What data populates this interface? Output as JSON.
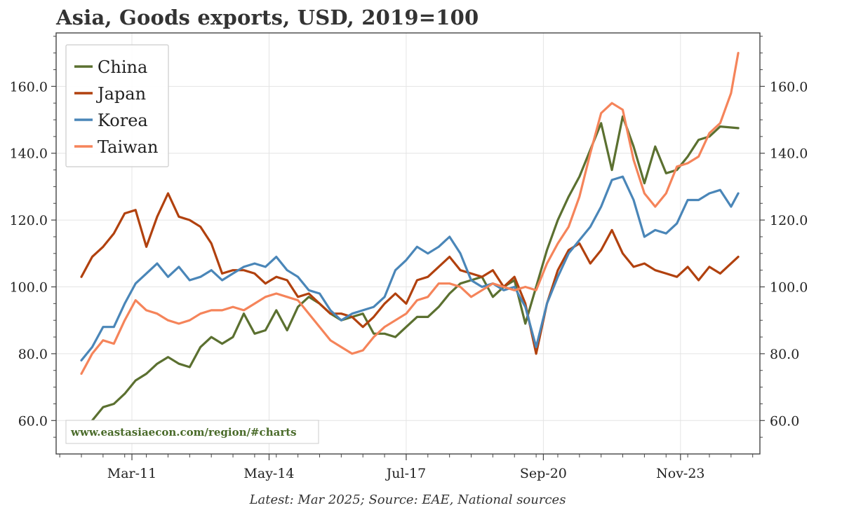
{
  "chart_data": {
    "type": "line",
    "title": "Asia, Goods exports, USD, 2019=100",
    "xlabel": "",
    "ylabel": "",
    "x_ticks": [
      "Mar-11",
      "May-14",
      "Jul-17",
      "Sep-20",
      "Nov-23"
    ],
    "x_range": [
      "2009-06",
      "2025-09"
    ],
    "y_ticks": [
      "60.0",
      "80.0",
      "100.0",
      "120.0",
      "140.0",
      "160.0"
    ],
    "y_range": [
      50,
      176
    ],
    "y_axis_both_sides": true,
    "grid": true,
    "legend_position": "top-left",
    "footnote": "Latest: Mar 2025; Source: EAE, National sources",
    "watermark": "www.eastasiaecon.com/region/#charts",
    "series": [
      {
        "name": "China",
        "color": "#5b7030",
        "points": [
          [
            "2010-01",
            55
          ],
          [
            "2010-04",
            60
          ],
          [
            "2010-07",
            64
          ],
          [
            "2010-10",
            65
          ],
          [
            "2011-01",
            68
          ],
          [
            "2011-04",
            72
          ],
          [
            "2011-07",
            74
          ],
          [
            "2011-10",
            77
          ],
          [
            "2012-01",
            79
          ],
          [
            "2012-04",
            77
          ],
          [
            "2012-07",
            76
          ],
          [
            "2012-10",
            82
          ],
          [
            "2013-01",
            85
          ],
          [
            "2013-04",
            83
          ],
          [
            "2013-07",
            85
          ],
          [
            "2013-10",
            92
          ],
          [
            "2014-01",
            86
          ],
          [
            "2014-04",
            87
          ],
          [
            "2014-07",
            93
          ],
          [
            "2014-10",
            87
          ],
          [
            "2015-01",
            94
          ],
          [
            "2015-04",
            97
          ],
          [
            "2015-07",
            95
          ],
          [
            "2015-10",
            92
          ],
          [
            "2016-01",
            90
          ],
          [
            "2016-04",
            91
          ],
          [
            "2016-07",
            92
          ],
          [
            "2016-10",
            86
          ],
          [
            "2017-01",
            86
          ],
          [
            "2017-04",
            85
          ],
          [
            "2017-07",
            88
          ],
          [
            "2017-10",
            91
          ],
          [
            "2018-01",
            91
          ],
          [
            "2018-04",
            94
          ],
          [
            "2018-07",
            98
          ],
          [
            "2018-10",
            101
          ],
          [
            "2019-01",
            102
          ],
          [
            "2019-04",
            103
          ],
          [
            "2019-07",
            97
          ],
          [
            "2019-10",
            100
          ],
          [
            "2020-01",
            102
          ],
          [
            "2020-04",
            89
          ],
          [
            "2020-07",
            100
          ],
          [
            "2020-10",
            111
          ],
          [
            "2021-01",
            120
          ],
          [
            "2021-04",
            127
          ],
          [
            "2021-07",
            133
          ],
          [
            "2021-10",
            141
          ],
          [
            "2022-01",
            149
          ],
          [
            "2022-04",
            135
          ],
          [
            "2022-07",
            151
          ],
          [
            "2022-10",
            142
          ],
          [
            "2023-01",
            131
          ],
          [
            "2023-04",
            142
          ],
          [
            "2023-07",
            134
          ],
          [
            "2023-10",
            135
          ],
          [
            "2024-01",
            139
          ],
          [
            "2024-04",
            144
          ],
          [
            "2024-07",
            145
          ],
          [
            "2024-10",
            148
          ],
          [
            "2025-03",
            147.5
          ]
        ]
      },
      {
        "name": "Japan",
        "color": "#b1410e",
        "points": [
          [
            "2010-01",
            103
          ],
          [
            "2010-04",
            109
          ],
          [
            "2010-07",
            112
          ],
          [
            "2010-10",
            116
          ],
          [
            "2011-01",
            122
          ],
          [
            "2011-04",
            123
          ],
          [
            "2011-07",
            112
          ],
          [
            "2011-10",
            121
          ],
          [
            "2012-01",
            128
          ],
          [
            "2012-04",
            121
          ],
          [
            "2012-07",
            120
          ],
          [
            "2012-10",
            118
          ],
          [
            "2013-01",
            113
          ],
          [
            "2013-04",
            104
          ],
          [
            "2013-07",
            105
          ],
          [
            "2013-10",
            105
          ],
          [
            "2014-01",
            104
          ],
          [
            "2014-04",
            101
          ],
          [
            "2014-07",
            103
          ],
          [
            "2014-10",
            102
          ],
          [
            "2015-01",
            97
          ],
          [
            "2015-04",
            98
          ],
          [
            "2015-07",
            95
          ],
          [
            "2015-10",
            92
          ],
          [
            "2016-01",
            92
          ],
          [
            "2016-04",
            91
          ],
          [
            "2016-07",
            88
          ],
          [
            "2016-10",
            91
          ],
          [
            "2017-01",
            95
          ],
          [
            "2017-04",
            98
          ],
          [
            "2017-07",
            95
          ],
          [
            "2017-10",
            102
          ],
          [
            "2018-01",
            103
          ],
          [
            "2018-04",
            106
          ],
          [
            "2018-07",
            109
          ],
          [
            "2018-10",
            105
          ],
          [
            "2019-01",
            104
          ],
          [
            "2019-04",
            103
          ],
          [
            "2019-07",
            105
          ],
          [
            "2019-10",
            100
          ],
          [
            "2020-01",
            103
          ],
          [
            "2020-04",
            95
          ],
          [
            "2020-07",
            80
          ],
          [
            "2020-10",
            95
          ],
          [
            "2021-01",
            105
          ],
          [
            "2021-04",
            111
          ],
          [
            "2021-07",
            113
          ],
          [
            "2021-10",
            107
          ],
          [
            "2022-01",
            111
          ],
          [
            "2022-04",
            117
          ],
          [
            "2022-07",
            110
          ],
          [
            "2022-10",
            106
          ],
          [
            "2023-01",
            107
          ],
          [
            "2023-04",
            105
          ],
          [
            "2023-07",
            104
          ],
          [
            "2023-10",
            103
          ],
          [
            "2024-01",
            106
          ],
          [
            "2024-04",
            102
          ],
          [
            "2024-07",
            106
          ],
          [
            "2024-10",
            104
          ],
          [
            "2025-03",
            109
          ]
        ]
      },
      {
        "name": "Korea",
        "color": "#4a86b8",
        "points": [
          [
            "2010-01",
            78
          ],
          [
            "2010-04",
            82
          ],
          [
            "2010-07",
            88
          ],
          [
            "2010-10",
            88
          ],
          [
            "2011-01",
            95
          ],
          [
            "2011-04",
            101
          ],
          [
            "2011-07",
            104
          ],
          [
            "2011-10",
            107
          ],
          [
            "2012-01",
            103
          ],
          [
            "2012-04",
            106
          ],
          [
            "2012-07",
            102
          ],
          [
            "2012-10",
            103
          ],
          [
            "2013-01",
            105
          ],
          [
            "2013-04",
            102
          ],
          [
            "2013-07",
            104
          ],
          [
            "2013-10",
            106
          ],
          [
            "2014-01",
            107
          ],
          [
            "2014-04",
            106
          ],
          [
            "2014-07",
            109
          ],
          [
            "2014-10",
            105
          ],
          [
            "2015-01",
            103
          ],
          [
            "2015-04",
            99
          ],
          [
            "2015-07",
            98
          ],
          [
            "2015-10",
            93
          ],
          [
            "2016-01",
            90
          ],
          [
            "2016-04",
            92
          ],
          [
            "2016-07",
            93
          ],
          [
            "2016-10",
            94
          ],
          [
            "2017-01",
            97
          ],
          [
            "2017-04",
            105
          ],
          [
            "2017-07",
            108
          ],
          [
            "2017-10",
            112
          ],
          [
            "2018-01",
            110
          ],
          [
            "2018-04",
            112
          ],
          [
            "2018-07",
            115
          ],
          [
            "2018-10",
            110
          ],
          [
            "2019-01",
            102
          ],
          [
            "2019-04",
            100
          ],
          [
            "2019-07",
            101
          ],
          [
            "2019-10",
            99
          ],
          [
            "2020-01",
            100
          ],
          [
            "2020-04",
            94
          ],
          [
            "2020-07",
            82
          ],
          [
            "2020-10",
            95
          ],
          [
            "2021-01",
            103
          ],
          [
            "2021-04",
            110
          ],
          [
            "2021-07",
            114
          ],
          [
            "2021-10",
            118
          ],
          [
            "2022-01",
            124
          ],
          [
            "2022-04",
            132
          ],
          [
            "2022-07",
            133
          ],
          [
            "2022-10",
            126
          ],
          [
            "2023-01",
            115
          ],
          [
            "2023-04",
            117
          ],
          [
            "2023-07",
            116
          ],
          [
            "2023-10",
            119
          ],
          [
            "2024-01",
            126
          ],
          [
            "2024-04",
            126
          ],
          [
            "2024-07",
            128
          ],
          [
            "2024-10",
            129
          ],
          [
            "2025-01",
            124
          ],
          [
            "2025-03",
            128
          ]
        ]
      },
      {
        "name": "Taiwan",
        "color": "#f5845a",
        "points": [
          [
            "2010-01",
            74
          ],
          [
            "2010-04",
            80
          ],
          [
            "2010-07",
            84
          ],
          [
            "2010-10",
            83
          ],
          [
            "2011-01",
            90
          ],
          [
            "2011-04",
            96
          ],
          [
            "2011-07",
            93
          ],
          [
            "2011-10",
            92
          ],
          [
            "2012-01",
            90
          ],
          [
            "2012-04",
            89
          ],
          [
            "2012-07",
            90
          ],
          [
            "2012-10",
            92
          ],
          [
            "2013-01",
            93
          ],
          [
            "2013-04",
            93
          ],
          [
            "2013-07",
            94
          ],
          [
            "2013-10",
            93
          ],
          [
            "2014-01",
            95
          ],
          [
            "2014-04",
            97
          ],
          [
            "2014-07",
            98
          ],
          [
            "2014-10",
            97
          ],
          [
            "2015-01",
            96
          ],
          [
            "2015-04",
            92
          ],
          [
            "2015-07",
            88
          ],
          [
            "2015-10",
            84
          ],
          [
            "2016-01",
            82
          ],
          [
            "2016-04",
            80
          ],
          [
            "2016-07",
            81
          ],
          [
            "2016-10",
            85
          ],
          [
            "2017-01",
            88
          ],
          [
            "2017-04",
            90
          ],
          [
            "2017-07",
            92
          ],
          [
            "2017-10",
            96
          ],
          [
            "2018-01",
            97
          ],
          [
            "2018-04",
            101
          ],
          [
            "2018-07",
            101
          ],
          [
            "2018-10",
            100
          ],
          [
            "2019-01",
            97
          ],
          [
            "2019-04",
            99
          ],
          [
            "2019-07",
            101
          ],
          [
            "2019-10",
            100
          ],
          [
            "2020-01",
            99
          ],
          [
            "2020-04",
            100
          ],
          [
            "2020-07",
            99
          ],
          [
            "2020-10",
            107
          ],
          [
            "2021-01",
            113
          ],
          [
            "2021-04",
            118
          ],
          [
            "2021-07",
            127
          ],
          [
            "2021-10",
            140
          ],
          [
            "2022-01",
            152
          ],
          [
            "2022-04",
            155
          ],
          [
            "2022-07",
            153
          ],
          [
            "2022-10",
            138
          ],
          [
            "2023-01",
            128
          ],
          [
            "2023-04",
            124
          ],
          [
            "2023-07",
            128
          ],
          [
            "2023-10",
            136
          ],
          [
            "2024-01",
            137
          ],
          [
            "2024-04",
            139
          ],
          [
            "2024-07",
            146
          ],
          [
            "2024-10",
            149
          ],
          [
            "2025-01",
            158
          ],
          [
            "2025-03",
            170
          ]
        ]
      }
    ]
  }
}
